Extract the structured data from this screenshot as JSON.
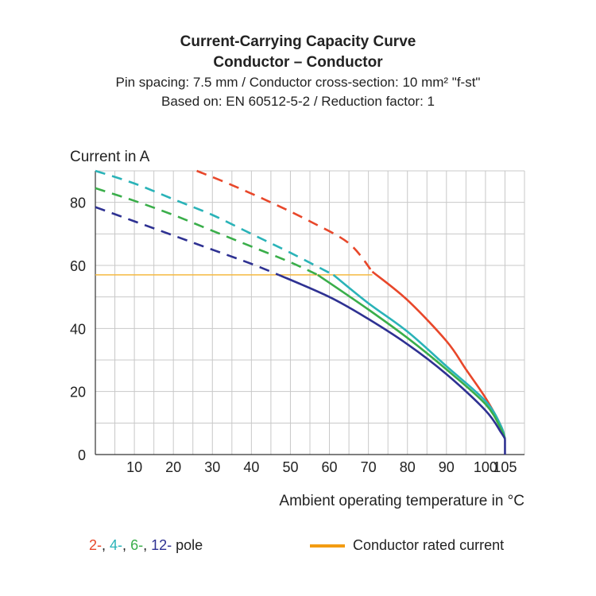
{
  "title": "Current-Carrying Capacity Curve",
  "subtitle": "Conductor – Conductor",
  "info_line1": "Pin spacing: 7.5 mm / Conductor cross-section: 10 mm² \"f-st\"",
  "info_line2": "Based on: EN 60512-5-2 / Reduction factor: 1",
  "colors": {
    "pole2": "#e8472a",
    "pole4": "#2ab3b8",
    "pole6": "#3aae4a",
    "pole12": "#2e3192",
    "rated": "#f39c12",
    "reference": "#f5b942",
    "grid": "#c8c8c8"
  },
  "legend": {
    "poles": [
      {
        "text": "2-",
        "color_key": "pole2"
      },
      {
        "text": "4-",
        "color_key": "pole4"
      },
      {
        "text": "6-",
        "color_key": "pole6"
      },
      {
        "text": "12-",
        "color_key": "pole12"
      }
    ],
    "poles_suffix": "pole",
    "rated_label": "Conductor rated current"
  },
  "chart_data": {
    "type": "line",
    "xlabel": "Ambient operating temperature in °C",
    "ylabel": "Current in A",
    "xlim": [
      0,
      110
    ],
    "ylim": [
      0,
      90
    ],
    "x_ticks": [
      10,
      20,
      30,
      40,
      50,
      60,
      70,
      80,
      90,
      100,
      105
    ],
    "y_ticks": [
      0,
      20,
      40,
      60,
      80
    ],
    "grid": true,
    "reference_line": {
      "y": 57,
      "x_range": [
        0,
        71
      ]
    },
    "series": [
      {
        "name": "2-",
        "color_key": "pole2",
        "dashed": [
          [
            26,
            90
          ],
          [
            35,
            85.5
          ],
          [
            45,
            80
          ],
          [
            55,
            74
          ],
          [
            65,
            67
          ],
          [
            71,
            58
          ]
        ],
        "solid": [
          [
            71,
            58
          ],
          [
            80,
            49
          ],
          [
            90,
            36
          ],
          [
            95,
            27
          ],
          [
            100,
            18
          ],
          [
            104,
            9
          ],
          [
            105,
            5
          ]
        ]
      },
      {
        "name": "4-",
        "color_key": "pole4",
        "dashed": [
          [
            0,
            90
          ],
          [
            10,
            86
          ],
          [
            20,
            81
          ],
          [
            30,
            76
          ],
          [
            40,
            70
          ],
          [
            50,
            64
          ],
          [
            61,
            57
          ]
        ],
        "solid": [
          [
            61,
            57
          ],
          [
            70,
            48
          ],
          [
            80,
            39
          ],
          [
            90,
            28
          ],
          [
            100,
            17
          ],
          [
            104,
            9
          ],
          [
            105,
            5
          ]
        ]
      },
      {
        "name": "6-",
        "color_key": "pole6",
        "dashed": [
          [
            0,
            84.5
          ],
          [
            10,
            80.5
          ],
          [
            20,
            76
          ],
          [
            30,
            71
          ],
          [
            40,
            66
          ],
          [
            50,
            61
          ],
          [
            57,
            57
          ]
        ],
        "solid": [
          [
            57,
            57
          ],
          [
            70,
            46
          ],
          [
            80,
            37
          ],
          [
            90,
            27
          ],
          [
            100,
            16
          ],
          [
            104,
            8
          ],
          [
            105,
            5
          ]
        ]
      },
      {
        "name": "12-",
        "color_key": "pole12",
        "dashed": [
          [
            0,
            78.5
          ],
          [
            10,
            74
          ],
          [
            20,
            69.5
          ],
          [
            30,
            65
          ],
          [
            40,
            60.5
          ],
          [
            47,
            57
          ]
        ],
        "solid": [
          [
            47,
            57
          ],
          [
            60,
            50
          ],
          [
            70,
            43
          ],
          [
            80,
            35
          ],
          [
            90,
            25.5
          ],
          [
            100,
            14
          ],
          [
            104,
            7
          ],
          [
            105,
            5
          ]
        ]
      }
    ]
  }
}
